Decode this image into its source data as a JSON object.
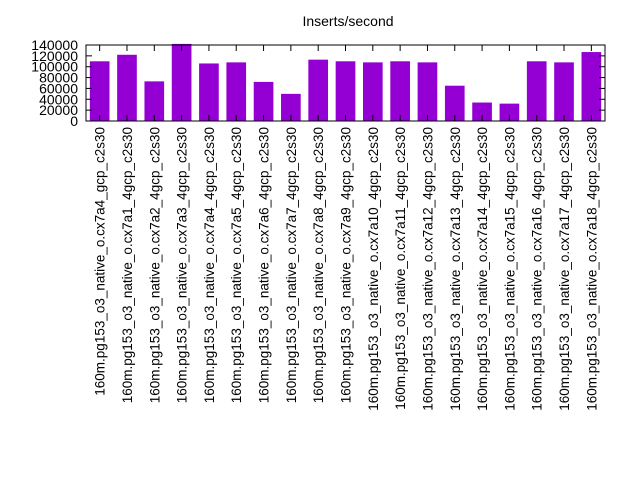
{
  "chart_data": {
    "type": "bar",
    "title": "Inserts/second",
    "xlabel": "",
    "ylabel": "",
    "ylim": [
      0,
      140000
    ],
    "yticks": [
      0,
      20000,
      40000,
      60000,
      80000,
      100000,
      120000,
      140000
    ],
    "ytick_labels": [
      "0",
      "20000",
      "40000",
      "60000",
      "80000",
      "100000",
      "120000",
      "140000"
    ],
    "grid": false,
    "legend": "none",
    "bar_color": "#9400d3",
    "categories": [
      "160m.pg153_o3_native_o.cx7a4_gcp_c2s30",
      "160m.pg153_o3_native_o.cx7a1_4gcp_c2s30",
      "160m.pg153_o3_native_o.cx7a2_4gcp_c2s30",
      "160m.pg153_o3_native_o.cx7a3_4gcp_c2s30",
      "160m.pg153_o3_native_o.cx7a4_4gcp_c2s30",
      "160m.pg153_o3_native_o.cx7a5_4gcp_c2s30",
      "160m.pg153_o3_native_o.cx7a6_4gcp_c2s30",
      "160m.pg153_o3_native_o.cx7a7_4gcp_c2s30",
      "160m.pg153_o3_native_o.cx7a8_4gcp_c2s30",
      "160m.pg153_o3_native_o.cx7a9_4gcp_c2s30",
      "160m.pg153_o3_native_o.cx7a10_4gcp_c2s30",
      "160m.pg153_o3_native_o.cx7a11_4gcp_c2s30",
      "160m.pg153_o3_native_o.cx7a12_4gcp_c2s30",
      "160m.pg153_o3_native_o.cx7a13_4gcp_c2s30",
      "160m.pg153_o3_native_o.cx7a14_4gcp_c2s30",
      "160m.pg153_o3_native_o.cx7a15_4gcp_c2s30",
      "160m.pg153_o3_native_o.cx7a16_4gcp_c2s30",
      "160m.pg153_o3_native_o.cx7a17_4gcp_c2s30",
      "160m.pg153_o3_native_o.cx7a18_4gcp_c2s30"
    ],
    "values": [
      110000,
      122000,
      73000,
      142000,
      106000,
      108000,
      72000,
      50000,
      113000,
      110000,
      108000,
      110000,
      108000,
      65000,
      34000,
      32000,
      110000,
      108000,
      127000
    ]
  }
}
